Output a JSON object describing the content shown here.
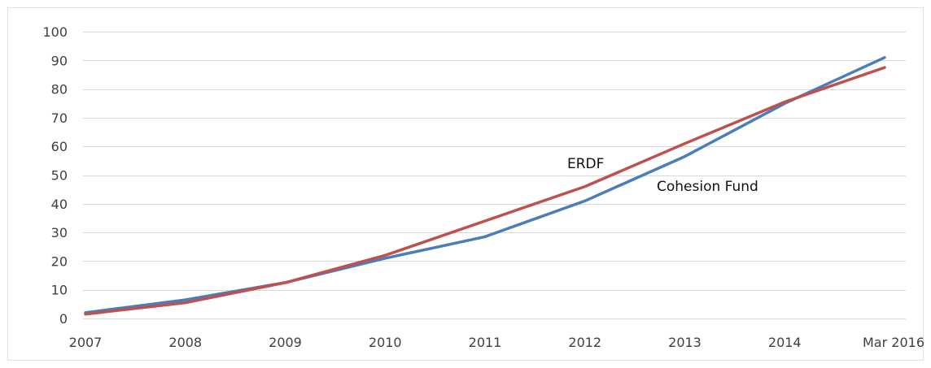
{
  "chart_data": {
    "type": "line",
    "categories": [
      "2007",
      "2008",
      "2009",
      "2010",
      "2011",
      "2012",
      "2013",
      "2014",
      "Mar 2016"
    ],
    "ylim": [
      0,
      100
    ],
    "yticks": [
      0,
      10,
      20,
      30,
      40,
      50,
      60,
      70,
      80,
      90,
      100
    ],
    "grid": true,
    "legend": "none",
    "series": [
      {
        "name": "ERDF",
        "color": "#c0504d",
        "values": [
          1.5,
          5.5,
          12.5,
          22,
          34,
          46,
          61,
          75.5,
          87.5
        ]
      },
      {
        "name": "Cohesion Fund",
        "color": "#4a7ebb",
        "values": [
          2,
          6.5,
          12.5,
          21,
          28.5,
          41,
          56.5,
          75,
          91
        ]
      }
    ]
  }
}
